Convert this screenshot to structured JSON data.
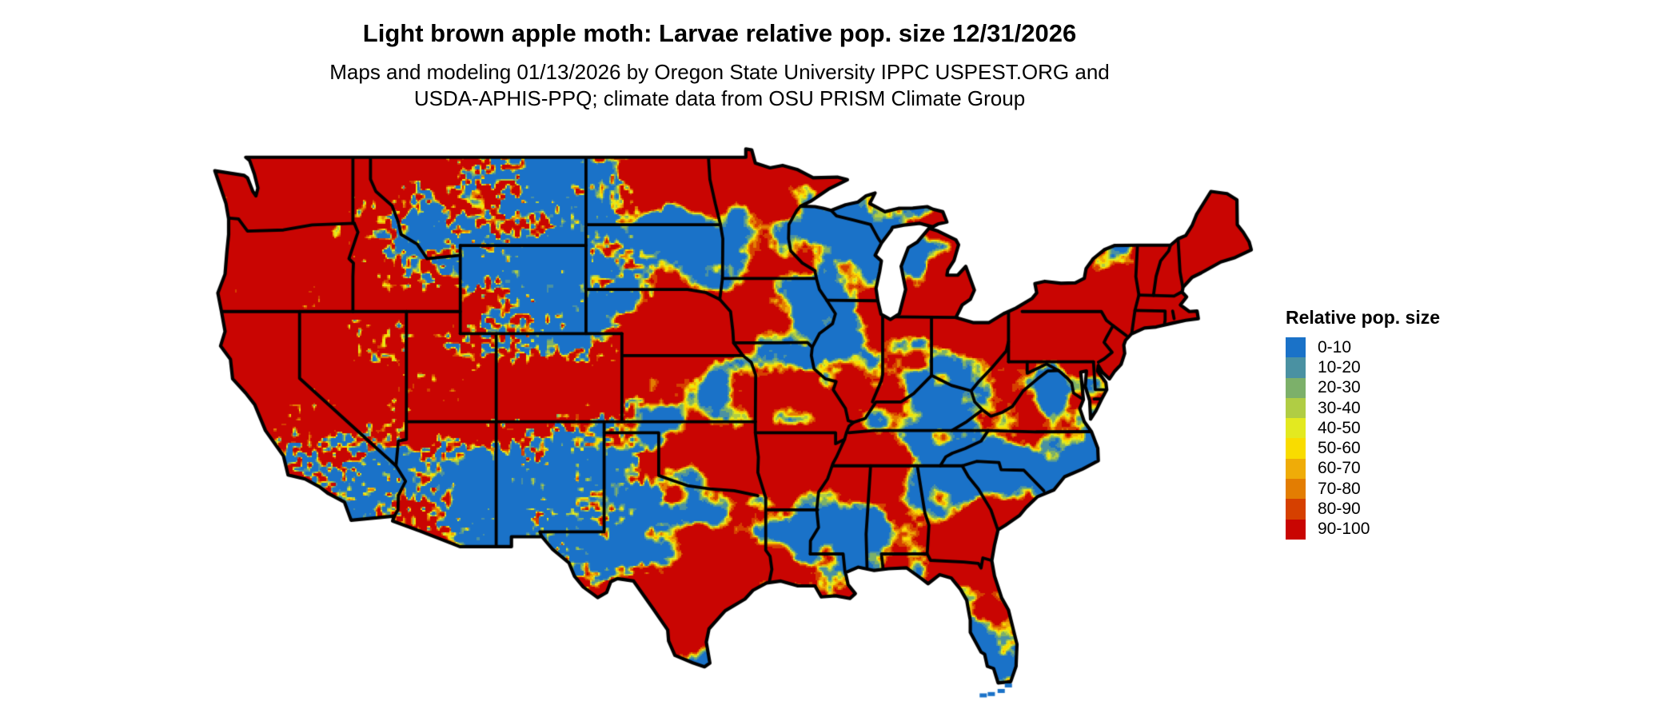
{
  "title": "Light brown apple moth: Larvae relative pop. size 12/31/2026",
  "subtitle": {
    "line1": "Maps and modeling 01/13/2026 by Oregon State University IPPC USPEST.ORG and",
    "line2": "USDA-APHIS-PPQ; climate data from OSU PRISM Climate Group"
  },
  "legend": {
    "title": "Relative pop. size",
    "items": [
      {
        "label": "0-10",
        "color": "#1a72c8"
      },
      {
        "label": "10-20",
        "color": "#4a91a2"
      },
      {
        "label": "20-30",
        "color": "#7cb06a"
      },
      {
        "label": "30-40",
        "color": "#b0cd44"
      },
      {
        "label": "40-50",
        "color": "#e3e920"
      },
      {
        "label": "50-60",
        "color": "#f9dc00"
      },
      {
        "label": "60-70",
        "color": "#efac08"
      },
      {
        "label": "70-80",
        "color": "#e37d02"
      },
      {
        "label": "80-90",
        "color": "#d64000"
      },
      {
        "label": "90-100",
        "color": "#c90502"
      }
    ]
  },
  "map": {
    "region": "Continental United States",
    "border_color": "#000000",
    "water_background": "#ffffff",
    "dominant_bins": [
      "90-100",
      "0-10"
    ],
    "note": "Raster map: large red (90-100) areas interleaved with blue (0-10) zones; thin green/yellow/orange fringes at transitions; finely speckled texture in the mountainous West; Florida Keys shown as small blue islands."
  }
}
